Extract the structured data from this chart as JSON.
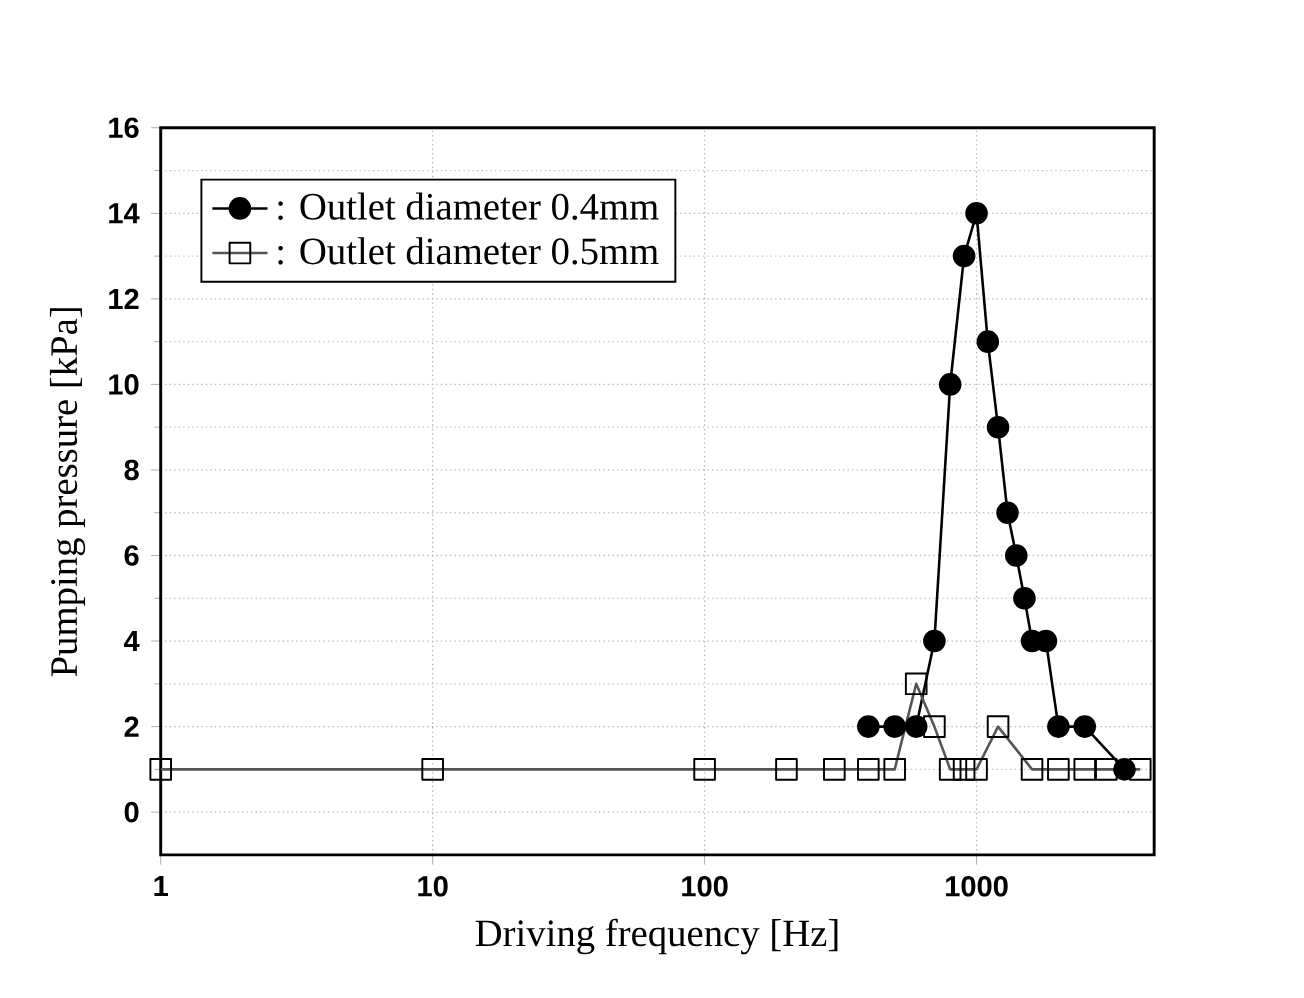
{
  "chart_data": {
    "type": "line",
    "xlabel": "Driving frequency [Hz]",
    "ylabel": "Pumping pressure [kPa]",
    "log": "x",
    "xlim": [
      1,
      4500
    ],
    "ylim": [
      -1,
      16
    ],
    "xticks": [
      1,
      10,
      100,
      1000
    ],
    "yticks": [
      0,
      2,
      4,
      6,
      8,
      10,
      12,
      14,
      16
    ],
    "grid": true,
    "legend": "top left",
    "series": [
      {
        "name": ": Outlet diameter 0.4mm",
        "color": "#000000",
        "marker": "circle",
        "x": [
          400,
          500,
          600,
          700,
          800,
          900,
          1000,
          1100,
          1200,
          1300,
          1400,
          1500,
          1600,
          1800,
          2000,
          2500,
          3500
        ],
        "values": [
          2,
          2,
          2,
          4,
          10,
          13,
          14,
          11,
          9,
          7,
          6,
          5,
          4,
          4,
          2,
          2,
          1
        ]
      },
      {
        "name": ": Outlet diameter 0.5mm",
        "color": "#555555",
        "marker": "square",
        "x": [
          1,
          10,
          100,
          200,
          300,
          400,
          500,
          600,
          700,
          800,
          900,
          1000,
          1200,
          1600,
          2000,
          2500,
          3000,
          4000
        ],
        "values": [
          1,
          1,
          1,
          1,
          1,
          1,
          1,
          3,
          2,
          1,
          1,
          1,
          2,
          1,
          1,
          1,
          1,
          1
        ]
      }
    ]
  }
}
